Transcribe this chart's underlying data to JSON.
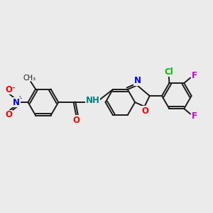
{
  "bg_color": "#ebebeb",
  "bond_color": "#1a1a1a",
  "N_color": "#0000ff",
  "O_color": "#ff0000",
  "Cl_color": "#00bb00",
  "F_color": "#cc00cc",
  "H_color": "#008080",
  "font_size": 8.5,
  "lw": 1.4,
  "xlim": [
    0,
    10
  ],
  "ylim": [
    0,
    10
  ]
}
